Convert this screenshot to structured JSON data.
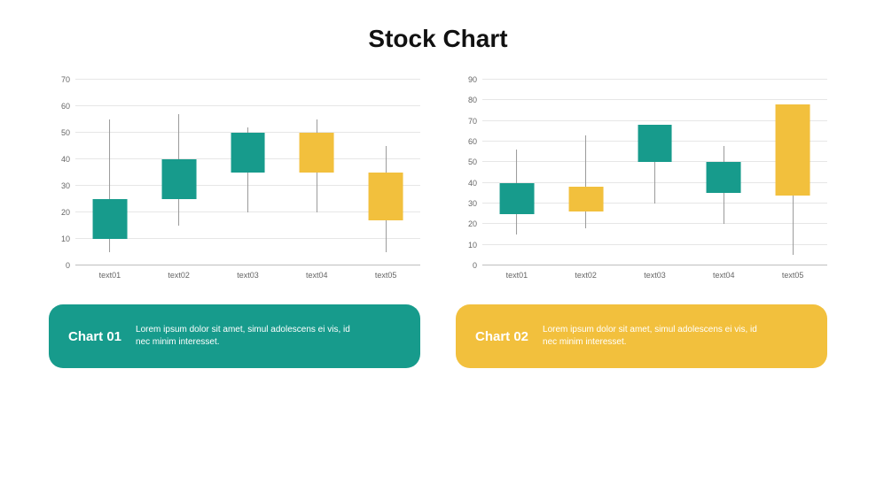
{
  "title": "Stock Chart",
  "colors": {
    "teal": "#179b8c",
    "yellow": "#f2c03d",
    "grid": "#e6e6e6",
    "axis_text": "#666666",
    "bg": "#ffffff",
    "wick": "#999999"
  },
  "charts": [
    {
      "id": "chart1",
      "type": "candlestick",
      "ymin": 0,
      "ymax": 70,
      "ytick_step": 10,
      "yticks": [
        "0",
        "10",
        "20",
        "30",
        "40",
        "50",
        "60",
        "70"
      ],
      "categories": [
        "text01",
        "text02",
        "text03",
        "text04",
        "text05"
      ],
      "candle_width_pct": 10,
      "candles": [
        {
          "low": 5,
          "high": 55,
          "open": 10,
          "close": 25,
          "color": "#179b8c"
        },
        {
          "low": 15,
          "high": 57,
          "open": 25,
          "close": 40,
          "color": "#179b8c"
        },
        {
          "low": 20,
          "high": 52,
          "open": 35,
          "close": 50,
          "color": "#179b8c"
        },
        {
          "low": 20,
          "high": 55,
          "open": 35,
          "close": 50,
          "color": "#f2c03d"
        },
        {
          "low": 5,
          "high": 45,
          "open": 17,
          "close": 35,
          "color": "#f2c03d"
        }
      ]
    },
    {
      "id": "chart2",
      "type": "candlestick",
      "ymin": 0,
      "ymax": 90,
      "ytick_step": 10,
      "yticks": [
        "0",
        "10",
        "20",
        "30",
        "40",
        "50",
        "60",
        "70",
        "80",
        "90"
      ],
      "categories": [
        "text01",
        "text02",
        "text03",
        "text04",
        "text05"
      ],
      "candle_width_pct": 10,
      "candles": [
        {
          "low": 15,
          "high": 56,
          "open": 25,
          "close": 40,
          "color": "#179b8c"
        },
        {
          "low": 18,
          "high": 63,
          "open": 26,
          "close": 38,
          "color": "#f2c03d"
        },
        {
          "low": 30,
          "high": 68,
          "open": 50,
          "close": 68,
          "color": "#179b8c"
        },
        {
          "low": 20,
          "high": 58,
          "open": 35,
          "close": 50,
          "color": "#179b8c"
        },
        {
          "low": 5,
          "high": 78,
          "open": 34,
          "close": 78,
          "color": "#f2c03d"
        }
      ]
    }
  ],
  "captions": [
    {
      "title": "Chart 01",
      "text": "Lorem ipsum dolor sit amet, simul adolescens ei vis, id nec minim  interesset.",
      "bg": "#179b8c"
    },
    {
      "title": "Chart 02",
      "text": "Lorem ipsum dolor sit amet, simul adolescens ei vis, id nec minim  interesset.",
      "bg": "#f2c03d"
    }
  ]
}
